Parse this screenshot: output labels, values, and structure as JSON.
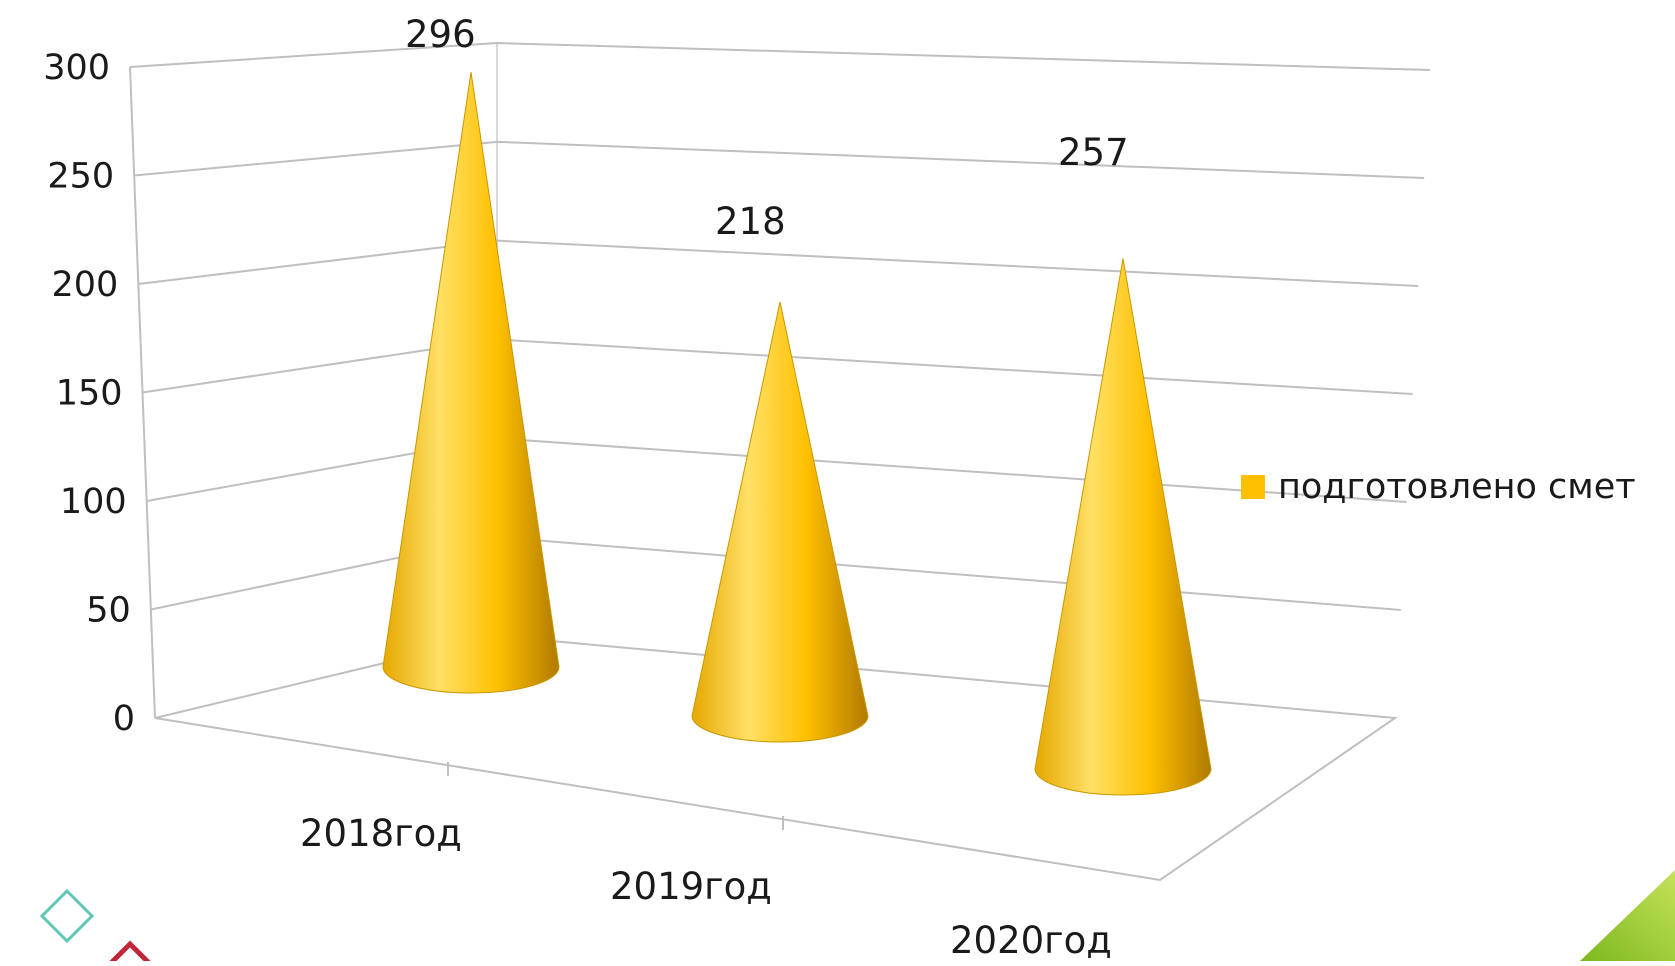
{
  "chart_data": {
    "type": "bar",
    "shape": "cone",
    "view": "3d",
    "categories": [
      "2018год",
      "2019год",
      "2020год"
    ],
    "series": [
      {
        "name": "подготовлено смет",
        "values": [
          296,
          218,
          257
        ]
      }
    ],
    "data_labels": [
      "296",
      "218",
      "257"
    ],
    "yticks": [
      "0",
      "50",
      "100",
      "150",
      "200",
      "250",
      "300"
    ],
    "ylim": [
      0,
      300
    ],
    "ystep": 50,
    "grid": true,
    "legend": "right",
    "colors": {
      "cone_light": "#FFE066",
      "cone_mid": "#FFC000",
      "cone_dark": "#B07A00",
      "legend_swatch": "#FFC000",
      "gridline": "#BFBFBF",
      "decor_teal": "#5FC7B5",
      "decor_red": "#C0283A",
      "decor_green": "#9ACD32"
    },
    "title": "",
    "xlabel": "",
    "ylabel": ""
  }
}
